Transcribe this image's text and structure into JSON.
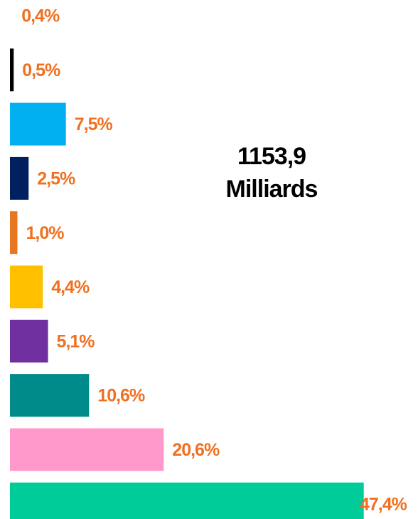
{
  "chart_data": {
    "type": "barh",
    "annotations": [
      "1153,9",
      "Milliards"
    ],
    "values": [
      0.4,
      0.5,
      7.5,
      2.5,
      1.0,
      4.4,
      5.1,
      10.6,
      20.6,
      47.4
    ],
    "value_labels": [
      "0,4%",
      "0,5%",
      "7,5%",
      "2,5%",
      "1,0%",
      "4,4%",
      "5,1%",
      "10,6%",
      "20,6%",
      "47,4%"
    ],
    "colors": [
      "#ffffff",
      "#000000",
      "#00b0f0",
      "#002060",
      "#e87722",
      "#ffc000",
      "#7030a0",
      "#008b8b",
      "#ff99cc",
      "#00cc99"
    ],
    "label_color": "#f07020",
    "xlim": [
      0,
      50
    ]
  }
}
